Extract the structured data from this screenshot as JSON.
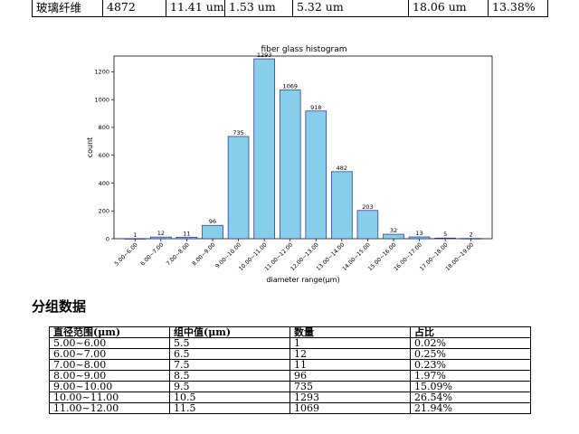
{
  "summary_row": [
    "玻璃纤维",
    "4872",
    "11.41 um",
    "1.53 um",
    "5.32 um",
    "18.06 um",
    "13.38%"
  ],
  "section_title": "分组数据",
  "group_table": {
    "headers": [
      "直径范围(μm)",
      "组中值(μm)",
      "数量",
      "占比"
    ],
    "rows": [
      [
        "5.00~6.00",
        "5.5",
        "1",
        "0.02%"
      ],
      [
        "6.00~7.00",
        "6.5",
        "12",
        "0.25%"
      ],
      [
        "7.00~8.00",
        "7.5",
        "11",
        "0.23%"
      ],
      [
        "8.00~9.00",
        "8.5",
        "96",
        "1.97%"
      ],
      [
        "9.00~10.00",
        "9.5",
        "735",
        "15.09%"
      ],
      [
        "10.00~11.00",
        "10.5",
        "1293",
        "26.54%"
      ],
      [
        "11.00~12.00",
        "11.5",
        "1069",
        "21.94%"
      ]
    ]
  },
  "chart_data": {
    "type": "bar",
    "title": "fiber glass histogram",
    "xlabel": "diameter range(μm)",
    "ylabel": "count",
    "categories": [
      "5.00~6.00",
      "6.00~7.00",
      "7.00~8.00",
      "8.00~9.00",
      "9.00~10.00",
      "10.00~11.00",
      "11.00~12.00",
      "12.00~13.00",
      "13.00~14.00",
      "14.00~15.00",
      "15.00~16.00",
      "16.00~17.00",
      "17.00~18.00",
      "18.00~19.00"
    ],
    "values": [
      1,
      12,
      11,
      96,
      735,
      1293,
      1069,
      918,
      482,
      203,
      32,
      13,
      5,
      2
    ],
    "ylim": [
      0,
      1300
    ],
    "yticks": [
      0,
      200,
      400,
      600,
      800,
      1000,
      1200
    ],
    "grid": false,
    "bar_color": "#87ceeb",
    "bar_edge_color": "#1f2a8a"
  }
}
